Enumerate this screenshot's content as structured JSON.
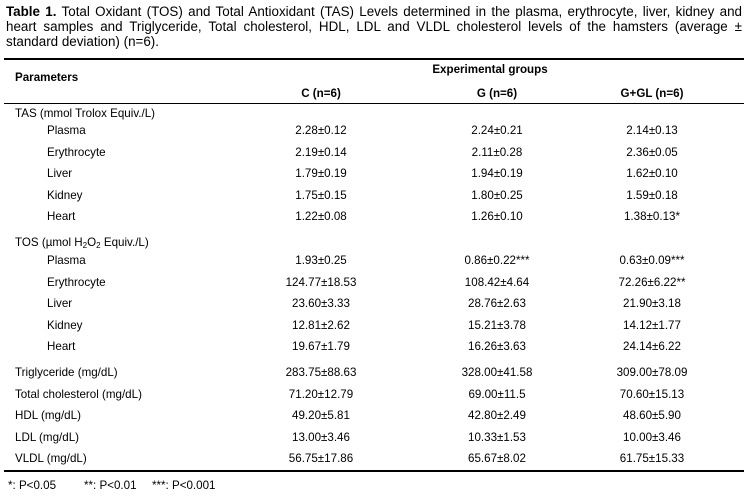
{
  "caption": {
    "label": "Table 1.",
    "text": "Total Oxidant (TOS) and Total Antioxidant (TAS) Levels determined in the plasma, erythrocyte, liver, kidney and heart samples and Triglyceride, Total cholesterol, HDL, LDL and VLDL cholesterol levels of the hamsters (average ± standard deviation) (n=6)."
  },
  "header": {
    "parameters": "Parameters",
    "experimental_groups": "Experimental groups",
    "columns": [
      "C (n=6)",
      "G (n=6)",
      "G+GL (n=6)"
    ]
  },
  "sections": {
    "tas": {
      "title": "TAS (mmol Trolox Equiv./L)",
      "rows": [
        {
          "label": "Plasma",
          "values": [
            "2.28±0.12",
            "2.24±0.21",
            "2.14±0.13"
          ]
        },
        {
          "label": "Erythrocyte",
          "values": [
            "2.19±0.14",
            "2.11±0.28",
            "2.36±0.05"
          ]
        },
        {
          "label": "Liver",
          "values": [
            "1.79±0.19",
            "1.94±0.19",
            "1.62±0.10"
          ]
        },
        {
          "label": "Kidney",
          "values": [
            "1.75±0.15",
            "1.80±0.25",
            "1.59±0.18"
          ]
        },
        {
          "label": "Heart",
          "values": [
            "1.22±0.08",
            "1.26±0.10",
            "1.38±0.13*"
          ]
        }
      ]
    },
    "tos": {
      "title_prefix": "TOS (µmol H",
      "title_sub1": "2",
      "title_mid": "O",
      "title_sub2": "2",
      "title_suffix": " Equiv./L)",
      "rows": [
        {
          "label": "Plasma",
          "values": [
            "1.93±0.25",
            "0.86±0.22***",
            "0.63±0.09***"
          ]
        },
        {
          "label": "Erythrocyte",
          "values": [
            "124.77±18.53",
            "108.42±4.64",
            "72.26±6.22**"
          ]
        },
        {
          "label": "Liver",
          "values": [
            "23.60±3.33",
            "28.76±2.63",
            "21.90±3.18"
          ]
        },
        {
          "label": "Kidney",
          "values": [
            "12.81±2.62",
            "15.21±3.78",
            "14.12±1.77"
          ]
        },
        {
          "label": "Heart",
          "values": [
            "19.67±1.79",
            "16.26±3.63",
            "24.14±6.22"
          ]
        }
      ]
    },
    "lipids": {
      "rows": [
        {
          "label": "Triglyceride (mg/dL)",
          "values": [
            "283.75±88.63",
            "328.00±41.58",
            "309.00±78.09"
          ]
        },
        {
          "label": "Total cholesterol (mg/dL)",
          "values": [
            "71.20±12.79",
            "69.00±11.5",
            "70.60±15.13"
          ]
        },
        {
          "label": "HDL (mg/dL)",
          "values": [
            "49.20±5.81",
            "42.80±2.49",
            "48.60±5.90"
          ]
        },
        {
          "label": "LDL (mg/dL)",
          "values": [
            "13.00±3.46",
            "10.33±1.53",
            "10.00±3.46"
          ]
        },
        {
          "label": "VLDL (mg/dL)",
          "values": [
            "56.75±17.86",
            "65.67±8.02",
            "61.75±15.33"
          ]
        }
      ]
    }
  },
  "footnote": {
    "p1": "*: P<0.05",
    "p2": "**: P<0.01",
    "p3": "***: P<0.001"
  }
}
